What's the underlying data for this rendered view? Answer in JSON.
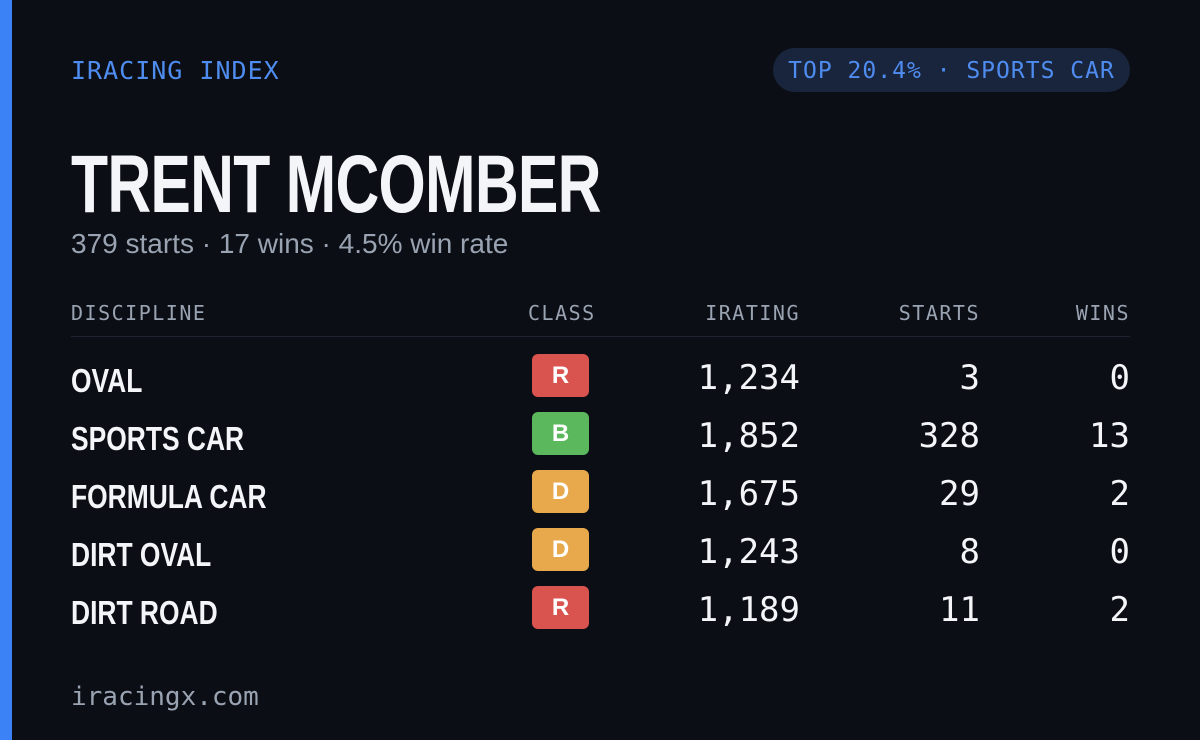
{
  "header": {
    "brand": "IRACING INDEX",
    "badge": "TOP 20.4% · SPORTS CAR"
  },
  "profile": {
    "name": "TRENT MCOMBER",
    "summary": "379 starts · 17 wins · 4.5% win rate"
  },
  "table": {
    "columns": [
      "DISCIPLINE",
      "CLASS",
      "IRATING",
      "STARTS",
      "WINS"
    ],
    "rows": [
      {
        "discipline": "OVAL",
        "class": "R",
        "class_color": "#d9534f",
        "irating": "1,234",
        "starts": 3,
        "wins": 0
      },
      {
        "discipline": "SPORTS CAR",
        "class": "B",
        "class_color": "#5cb85c",
        "irating": "1,852",
        "starts": 328,
        "wins": 13
      },
      {
        "discipline": "FORMULA CAR",
        "class": "D",
        "class_color": "#e8a94c",
        "irating": "1,675",
        "starts": 29,
        "wins": 2
      },
      {
        "discipline": "DIRT OVAL",
        "class": "D",
        "class_color": "#e8a94c",
        "irating": "1,243",
        "starts": 8,
        "wins": 0
      },
      {
        "discipline": "DIRT ROAD",
        "class": "R",
        "class_color": "#d9534f",
        "irating": "1,189",
        "starts": 11,
        "wins": 2
      }
    ]
  },
  "footer": {
    "site": "iracingx.com"
  }
}
